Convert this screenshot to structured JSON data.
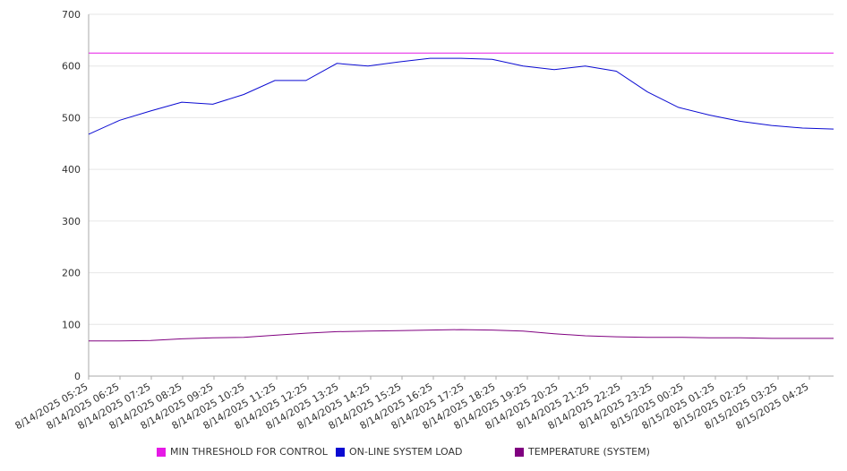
{
  "chart_data": {
    "type": "line",
    "title": "",
    "xlabel": "",
    "ylabel": "",
    "ylim": [
      0,
      700
    ],
    "yticks": [
      0,
      100,
      200,
      300,
      400,
      500,
      600,
      700
    ],
    "grid": true,
    "legend_position": "bottom",
    "x_tick_labels": [
      "8/14/2025 05:25",
      "8/14/2025 06:25",
      "8/14/2025 07:25",
      "8/14/2025 08:25",
      "8/14/2025 09:25",
      "8/14/2025 10:25",
      "8/14/2025 11:25",
      "8/14/2025 12:25",
      "8/14/2025 13:25",
      "8/14/2025 14:25",
      "8/14/2025 15:25",
      "8/14/2025 16:25",
      "8/14/2025 17:25",
      "8/14/2025 18:25",
      "8/14/2025 19:25",
      "8/14/2025 20:25",
      "8/14/2025 21:25",
      "8/14/2025 22:25",
      "8/14/2025 23:25",
      "8/15/2025 00:25",
      "8/15/2025 01:25",
      "8/15/2025 02:25",
      "8/15/2025 03:25",
      "8/15/2025 04:25"
    ],
    "series": [
      {
        "name": "MIN THRESHOLD FOR CONTROL",
        "color": "#e619e6",
        "values": [
          625,
          625,
          625,
          625,
          625,
          625,
          625,
          625,
          625,
          625,
          625,
          625,
          625,
          625,
          625,
          625,
          625,
          625,
          625,
          625,
          625,
          625,
          625,
          625,
          625
        ]
      },
      {
        "name": "ON-LINE SYSTEM LOAD",
        "color": "#0a0ad2",
        "values": [
          468,
          495,
          513,
          530,
          526,
          545,
          572,
          572,
          605,
          600,
          608,
          615,
          615,
          613,
          600,
          593,
          600,
          590,
          550,
          520,
          505,
          493,
          485,
          480,
          478
        ]
      },
      {
        "name": "TEMPERATURE (SYSTEM)",
        "color": "#800080",
        "values": [
          68,
          68,
          69,
          72,
          74,
          75,
          79,
          83,
          86,
          87,
          88,
          89,
          90,
          89,
          87,
          82,
          78,
          76,
          75,
          75,
          74,
          74,
          73,
          73,
          73
        ]
      }
    ]
  }
}
